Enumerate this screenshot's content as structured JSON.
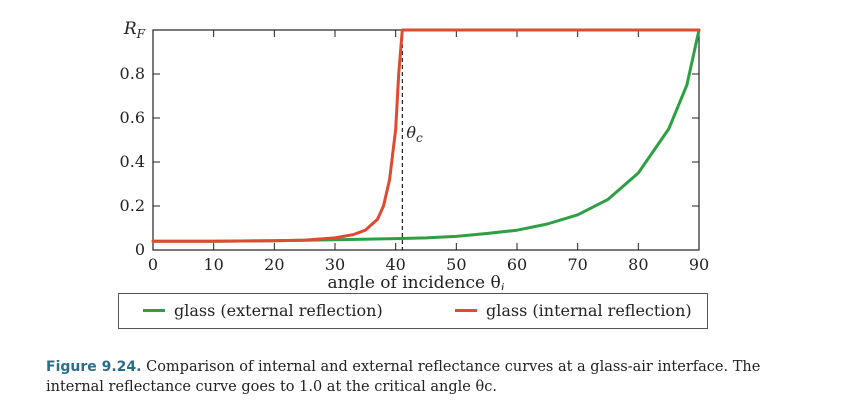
{
  "chart_data": {
    "type": "line",
    "ylabel": "R_F",
    "xlabel": "angle of incidence θ_i",
    "xlim": [
      0,
      90
    ],
    "ylim": [
      0,
      1
    ],
    "xticks": [
      "0",
      "10",
      "20",
      "30",
      "40",
      "50",
      "60",
      "70",
      "80",
      "90"
    ],
    "yticks": [
      "0",
      "0.2",
      "0.4",
      "0.6",
      "0.8"
    ],
    "annotation": {
      "label": "θc",
      "x": 41.1
    },
    "grid": false,
    "legend_position": "bottom",
    "series": [
      {
        "name": "glass (external reflection)",
        "color": "#2ea043",
        "x": [
          0,
          10,
          20,
          30,
          40,
          45,
          50,
          55,
          60,
          65,
          70,
          75,
          80,
          85,
          88,
          90
        ],
        "y": [
          0.04,
          0.04,
          0.042,
          0.047,
          0.052,
          0.055,
          0.062,
          0.075,
          0.09,
          0.118,
          0.16,
          0.23,
          0.35,
          0.55,
          0.75,
          1.0
        ]
      },
      {
        "name": "glass (internal reflection)",
        "color": "#e04a2f",
        "x": [
          0,
          10,
          20,
          25,
          30,
          33,
          35,
          37,
          38,
          39,
          40,
          40.5,
          41.1,
          50,
          60,
          70,
          80,
          90
        ],
        "y": [
          0.04,
          0.04,
          0.042,
          0.045,
          0.055,
          0.07,
          0.09,
          0.14,
          0.2,
          0.32,
          0.55,
          0.8,
          1.0,
          1.0,
          1.0,
          1.0,
          1.0,
          1.0
        ]
      }
    ]
  },
  "caption": {
    "label": "Figure 9.24.",
    "text": "Comparison of internal and external reflectance curves at a glass-air interface. The internal reflectance curve goes to 1.0 at the critical angle θc."
  }
}
